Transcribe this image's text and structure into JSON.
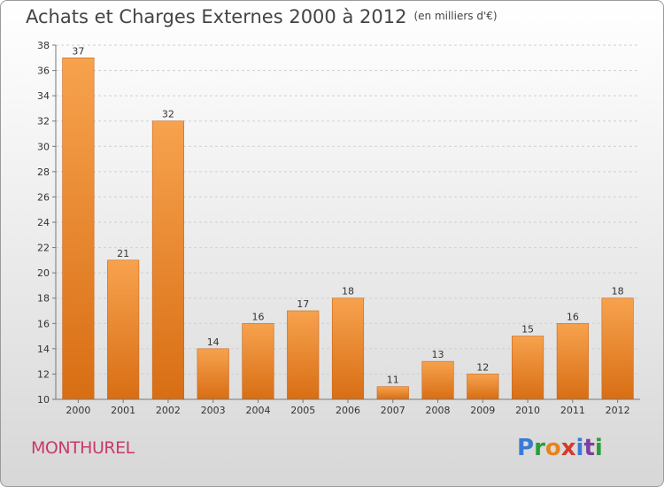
{
  "header": {
    "title": "Achats et Charges Externes 2000 à 2012",
    "unit": "(en milliers d'€)"
  },
  "commune": "MONTHUREL",
  "logo": {
    "text": "Proxiti",
    "colors": [
      "#3a7bd5",
      "#2a9d3a",
      "#e8831e",
      "#d63a2a",
      "#3a7bd5",
      "#7b3fa0",
      "#2a9d3a"
    ]
  },
  "chart_data": {
    "type": "bar",
    "categories": [
      "2000",
      "2001",
      "2002",
      "2003",
      "2004",
      "2005",
      "2006",
      "2007",
      "2008",
      "2009",
      "2010",
      "2011",
      "2012"
    ],
    "values": [
      37,
      21,
      32,
      14,
      16,
      17,
      18,
      11,
      13,
      12,
      15,
      16,
      18
    ],
    "title": "Achats et Charges Externes 2000 à 2012",
    "xlabel": "",
    "ylabel": "",
    "ylim": [
      10,
      38
    ],
    "yticks": [
      10,
      12,
      14,
      16,
      18,
      20,
      22,
      24,
      26,
      28,
      30,
      32,
      34,
      36,
      38
    ],
    "grid": true,
    "bar_color": "#f08a2a",
    "bar_color_light": "#f7a24e",
    "bar_color_dark": "#d86e14"
  }
}
